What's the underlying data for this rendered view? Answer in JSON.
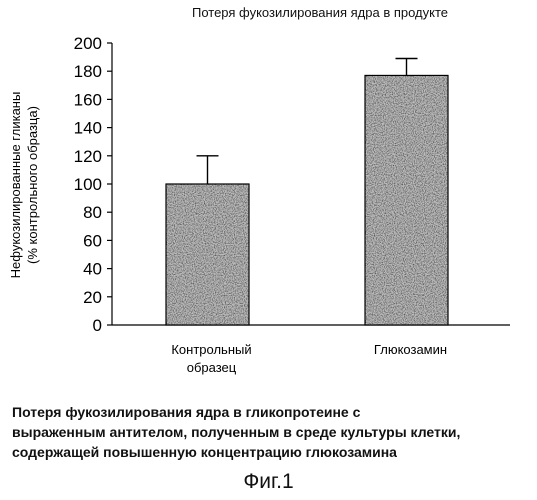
{
  "chart_data": {
    "type": "bar",
    "title": "Потеря фукозилирования ядра в продукте",
    "categories": [
      [
        "Контрольный",
        "образец"
      ],
      [
        "Глюкозамин"
      ]
    ],
    "values": [
      100,
      177
    ],
    "error_upper": [
      120,
      189
    ],
    "ylabel": [
      "Нефукозилированные гликаны",
      "(% контрольного образца)"
    ],
    "xlabel": "",
    "ylim": [
      0,
      200
    ],
    "yticks": [
      0,
      20,
      40,
      60,
      80,
      100,
      120,
      140,
      160,
      180,
      200
    ],
    "grid": false,
    "bar_fill": "#bdbdbd"
  },
  "caption": {
    "lines": [
      "Потеря фукозилирования ядра в гликопротеине с",
      "выраженным антителом, полученным в среде культуры клетки,",
      "содержащей повышенную концентрацию глюкозамина"
    ]
  },
  "figure_label": "Фиг.1"
}
